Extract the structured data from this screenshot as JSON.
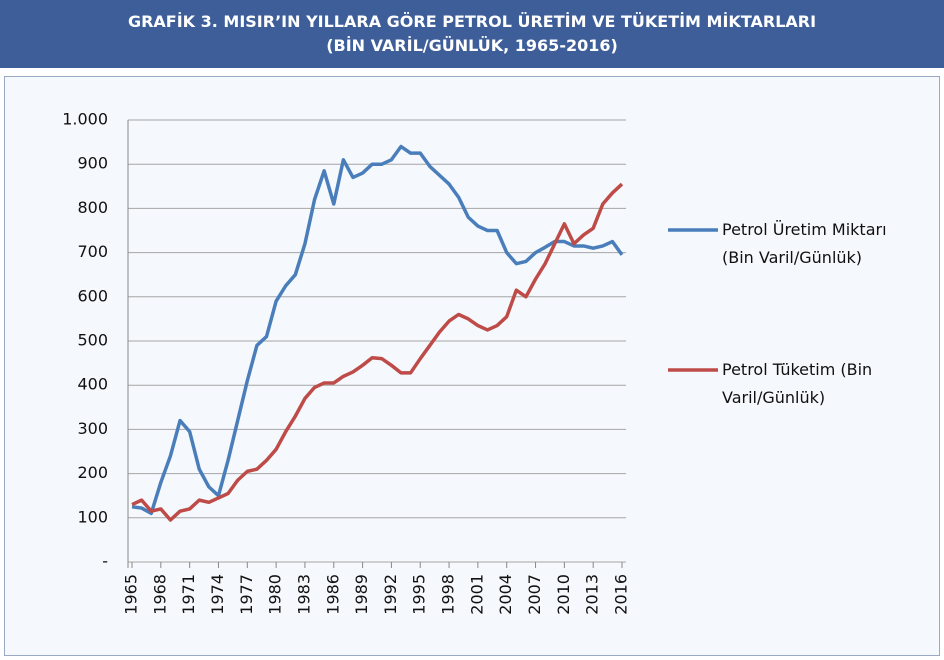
{
  "chart_data": {
    "type": "line",
    "title": "GRAFİK 3. MISIR’IN YILLARA GÖRE PETROL ÜRETİM VE TÜKETİM MİKTARLARI",
    "subtitle": "(BİN VARİL/GÜNLÜK, 1965-2016)",
    "x": [
      1965,
      1966,
      1967,
      1968,
      1969,
      1970,
      1971,
      1972,
      1973,
      1974,
      1975,
      1976,
      1977,
      1978,
      1979,
      1980,
      1981,
      1982,
      1983,
      1984,
      1985,
      1986,
      1987,
      1988,
      1989,
      1990,
      1991,
      1992,
      1993,
      1994,
      1995,
      1996,
      1997,
      1998,
      1999,
      2000,
      2001,
      2002,
      2003,
      2004,
      2005,
      2006,
      2007,
      2008,
      2009,
      2010,
      2011,
      2012,
      2013,
      2014,
      2015,
      2016
    ],
    "xlim": [
      1965,
      2016
    ],
    "xticks": [
      1965,
      1968,
      1971,
      1974,
      1977,
      1980,
      1983,
      1986,
      1989,
      1992,
      1995,
      1998,
      2001,
      2004,
      2007,
      2010,
      2013,
      2016
    ],
    "ylim": [
      0,
      1000
    ],
    "yticks": [
      {
        "value": 0,
        "label": "-"
      },
      100,
      200,
      300,
      400,
      500,
      600,
      700,
      800,
      900,
      {
        "value": 1000,
        "label": "1.000"
      }
    ],
    "grid": true,
    "legend": "right",
    "series": [
      {
        "name": "Petrol Üretim Miktarı (Bin Varil/Günlük)",
        "color": "#4a7ebb",
        "values": [
          125,
          122,
          110,
          180,
          240,
          320,
          295,
          210,
          170,
          150,
          230,
          320,
          410,
          490,
          510,
          590,
          625,
          650,
          720,
          820,
          885,
          810,
          910,
          870,
          880,
          900,
          900,
          910,
          940,
          925,
          925,
          895,
          875,
          855,
          825,
          780,
          760,
          750,
          750,
          700,
          675,
          680,
          700,
          712,
          725,
          725,
          715,
          715,
          710,
          715,
          725,
          695
        ]
      },
      {
        "name": "Petrol Tüketim (Bin Varil/Günlük)",
        "color": "#be4b48",
        "values": [
          130,
          140,
          115,
          120,
          95,
          115,
          120,
          140,
          135,
          145,
          155,
          185,
          205,
          210,
          230,
          255,
          295,
          330,
          370,
          395,
          405,
          405,
          420,
          430,
          445,
          462,
          460,
          445,
          428,
          428,
          460,
          490,
          520,
          545,
          560,
          550,
          535,
          525,
          535,
          555,
          615,
          600,
          640,
          675,
          720,
          765,
          720,
          740,
          755,
          810,
          835,
          855
        ]
      }
    ]
  }
}
